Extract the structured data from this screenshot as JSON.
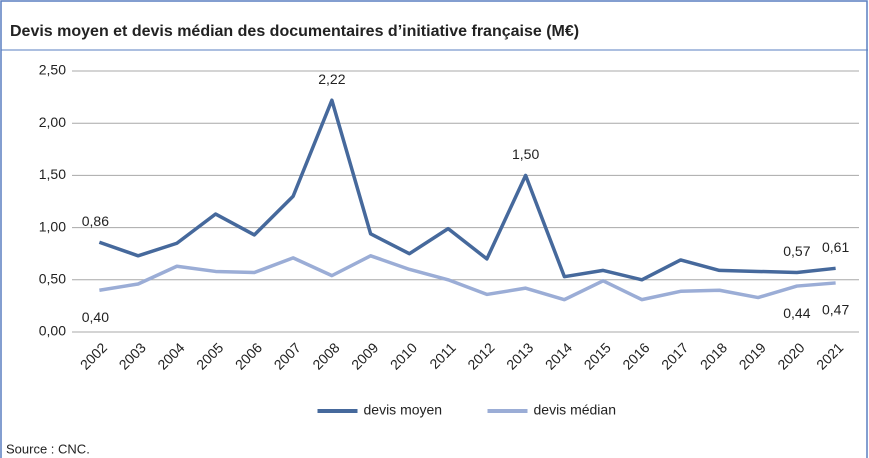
{
  "chart_data": {
    "type": "line",
    "title": "Devis moyen et devis médian des documentaires d’initiative française (M€)",
    "source": "Source : CNC.",
    "categories": [
      "2002",
      "2003",
      "2004",
      "2005",
      "2006",
      "2007",
      "2008",
      "2009",
      "2010",
      "2011",
      "2012",
      "2013",
      "2014",
      "2015",
      "2016",
      "2017",
      "2018",
      "2019",
      "2020",
      "2021"
    ],
    "series": [
      {
        "name": "devis moyen",
        "color": "#46699c",
        "values": [
          0.86,
          0.73,
          0.85,
          1.13,
          0.93,
          1.3,
          2.22,
          0.94,
          0.75,
          0.99,
          0.7,
          1.5,
          0.53,
          0.59,
          0.5,
          0.69,
          0.59,
          0.58,
          0.57,
          0.61
        ],
        "value_labels": [
          "0,86",
          null,
          null,
          null,
          null,
          null,
          "2,22",
          null,
          null,
          null,
          null,
          "1,50",
          null,
          null,
          null,
          null,
          null,
          null,
          "0,57",
          "0,61"
        ]
      },
      {
        "name": "devis médian",
        "color": "#9badd6",
        "values": [
          0.4,
          0.46,
          0.63,
          0.58,
          0.57,
          0.71,
          0.54,
          0.73,
          0.6,
          0.5,
          0.36,
          0.42,
          0.31,
          0.49,
          0.31,
          0.39,
          0.4,
          0.33,
          0.44,
          0.47
        ],
        "value_labels": [
          "0,40",
          null,
          null,
          null,
          null,
          null,
          null,
          null,
          null,
          null,
          null,
          null,
          null,
          null,
          null,
          null,
          null,
          null,
          "0,44",
          "0,47"
        ]
      }
    ],
    "ylim": [
      0,
      2.5
    ],
    "yticks": [
      {
        "value": 0,
        "label": "0,00"
      },
      {
        "value": 0.5,
        "label": "0,50"
      },
      {
        "value": 1,
        "label": "1,00"
      },
      {
        "value": 1.5,
        "label": "1,50"
      },
      {
        "value": 2,
        "label": "2,00"
      },
      {
        "value": 2.5,
        "label": "2,50"
      }
    ],
    "grid": true,
    "legend": "bottom"
  }
}
